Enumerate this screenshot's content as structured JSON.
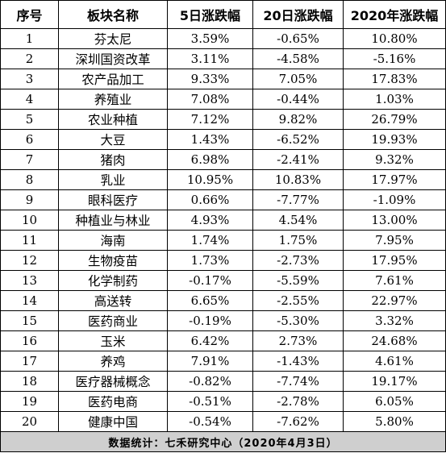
{
  "headers": [
    "序号",
    "板块名称",
    "5日涨跌幅",
    "20日涨跌幅",
    "2020年涨跌幅"
  ],
  "rows": [
    [
      "1",
      "芬太尼",
      "3.59%",
      "-0.65%",
      "10.80%"
    ],
    [
      "2",
      "深圳国资改革",
      "3.11%",
      "-4.58%",
      "-5.16%"
    ],
    [
      "3",
      "农产品加工",
      "9.33%",
      "7.05%",
      "17.83%"
    ],
    [
      "4",
      "养殖业",
      "7.08%",
      "-0.44%",
      "1.03%"
    ],
    [
      "5",
      "农业种植",
      "7.12%",
      "9.82%",
      "26.79%"
    ],
    [
      "6",
      "大豆",
      "1.43%",
      "-6.52%",
      "19.93%"
    ],
    [
      "7",
      "猪肉",
      "6.98%",
      "-2.41%",
      "9.32%"
    ],
    [
      "8",
      "乳业",
      "10.95%",
      "10.83%",
      "17.97%"
    ],
    [
      "9",
      "眼科医疗",
      "0.66%",
      "-7.77%",
      "-1.09%"
    ],
    [
      "10",
      "种植业与林业",
      "4.93%",
      "4.54%",
      "13.00%"
    ],
    [
      "11",
      "海南",
      "1.74%",
      "1.75%",
      "7.95%"
    ],
    [
      "12",
      "生物疫苗",
      "1.73%",
      "-2.73%",
      "17.95%"
    ],
    [
      "13",
      "化学制药",
      "-0.17%",
      "-5.59%",
      "7.61%"
    ],
    [
      "14",
      "高送转",
      "6.65%",
      "-2.55%",
      "22.97%"
    ],
    [
      "15",
      "医药商业",
      "-0.19%",
      "-5.30%",
      "3.32%"
    ],
    [
      "16",
      "玉米",
      "6.42%",
      "2.73%",
      "24.68%"
    ],
    [
      "17",
      "养鸡",
      "7.91%",
      "-1.43%",
      "4.61%"
    ],
    [
      "18",
      "医疗器械概念",
      "-0.82%",
      "-7.74%",
      "19.17%"
    ],
    [
      "19",
      "医药电商",
      "-0.51%",
      "-2.78%",
      "6.05%"
    ],
    [
      "20",
      "健康中国",
      "-0.54%",
      "-7.62%",
      "5.80%"
    ]
  ],
  "footer": "数据统计：七禾研究中心（2020年4月3日）"
}
